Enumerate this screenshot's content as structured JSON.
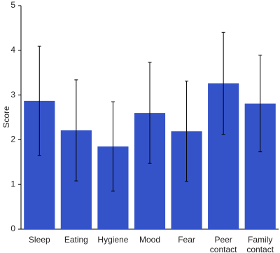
{
  "chart_data": {
    "type": "bar",
    "y_label": "Score",
    "categories": [
      "Sleep",
      "Eating",
      "Hygiene",
      "Mood",
      "Fear",
      "Peer contact",
      "Family contact"
    ],
    "values": [
      2.87,
      2.21,
      1.85,
      2.6,
      2.19,
      3.26,
      2.81
    ],
    "errors": [
      1.22,
      1.13,
      1.0,
      1.13,
      1.12,
      1.14,
      1.08
    ],
    "color": "#3553c9",
    "ylim": [
      0,
      5
    ],
    "yticks": [
      0,
      1,
      2,
      3,
      4,
      5
    ],
    "grid": false
  }
}
